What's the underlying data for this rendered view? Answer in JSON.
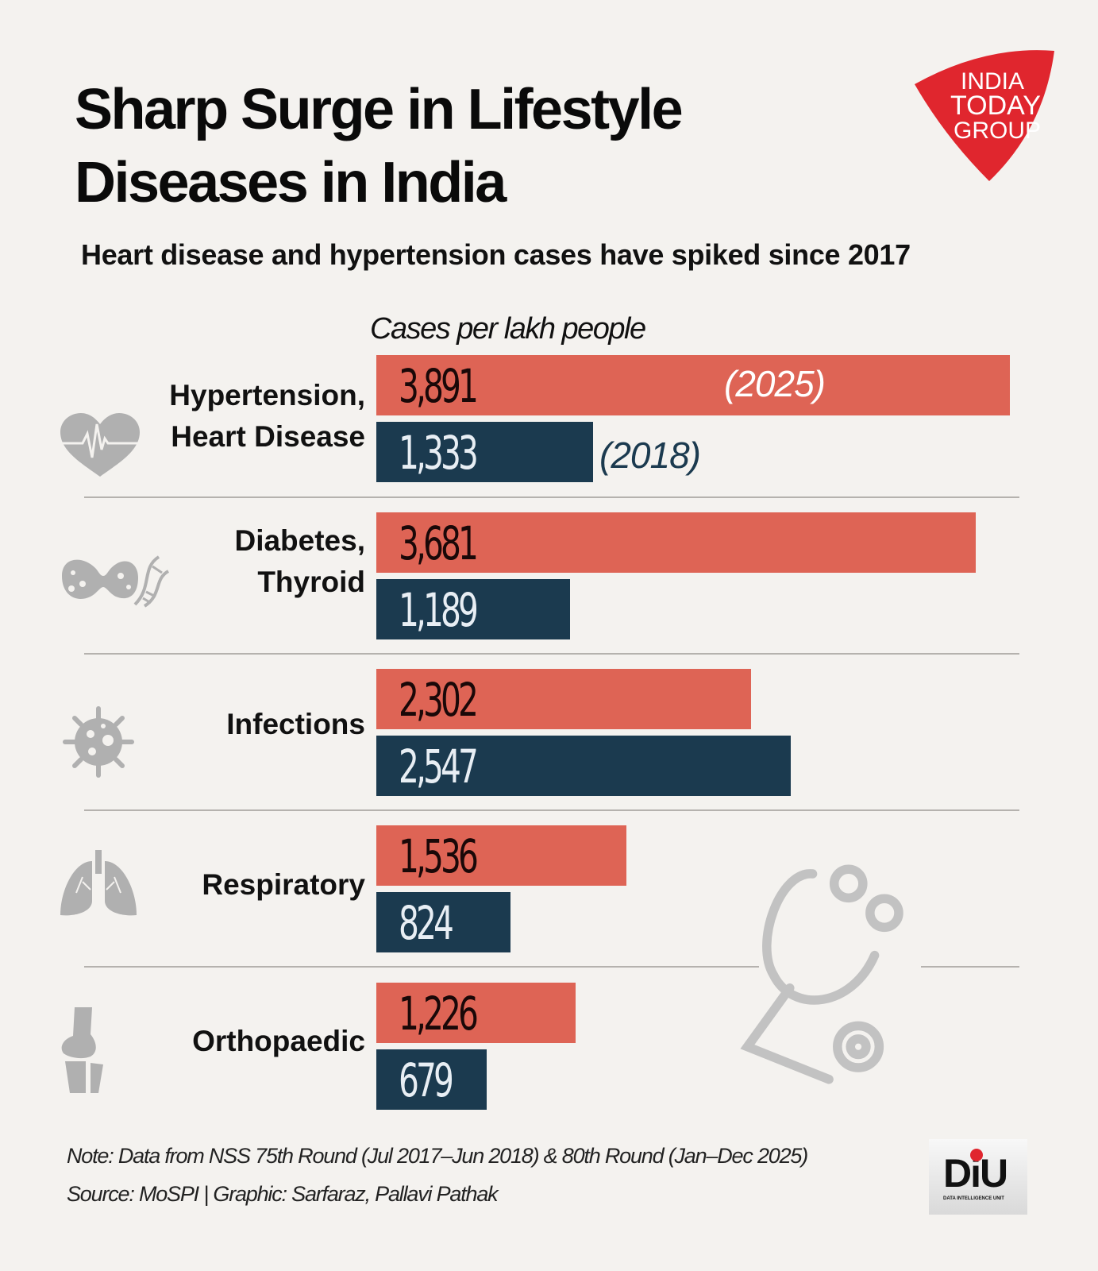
{
  "header": {
    "title_line1": "Sharp Surge in Lifestyle",
    "title_line2": "Diseases in India",
    "subtitle": "Heart disease and hypertension cases have spiked since 2017",
    "unit_label": "Cases per lakh people"
  },
  "logo": {
    "line1": "INDIA",
    "line2": "TODAY",
    "line3": "GROUP",
    "color": "#e0262e"
  },
  "diu_logo": {
    "text": "DiU",
    "subtext": "DATA INTELLIGENCE UNIT"
  },
  "colors": {
    "y2025": "#de6455",
    "y2018": "#1b3a4f"
  },
  "chart_data": {
    "type": "bar",
    "orientation": "horizontal",
    "title": "Sharp Surge in Lifestyle Diseases in India",
    "subtitle": "Heart disease and hypertension cases have spiked since 2017",
    "xlabel": "Cases per lakh people",
    "ylabel": "",
    "categories": [
      "Hypertension, Heart Disease",
      "Diabetes, Thyroid",
      "Infections",
      "Respiratory",
      "Orthopaedic"
    ],
    "series": [
      {
        "name": "2025",
        "label": "(2025)",
        "values": [
          3891,
          3681,
          2302,
          1536,
          1226
        ],
        "display": [
          "3,891",
          "3,681",
          "2,302",
          "1,536",
          "1,226"
        ]
      },
      {
        "name": "2018",
        "label": "(2018)",
        "values": [
          1333,
          1189,
          2547,
          824,
          679
        ],
        "display": [
          "1,333",
          "1,189",
          "2,547",
          "824",
          "679"
        ]
      }
    ],
    "xlim": [
      0,
      3891
    ],
    "grid": false,
    "legend": "inline labels on first category"
  },
  "categories_display": [
    {
      "line1": "Hypertension,",
      "line2": "Heart Disease",
      "icon": "heart-pulse-icon"
    },
    {
      "line1": "Diabetes,",
      "line2": "Thyroid",
      "icon": "thyroid-dna-icon"
    },
    {
      "line1": "Infections",
      "line2": "",
      "icon": "virus-icon"
    },
    {
      "line1": "Respiratory",
      "line2": "",
      "icon": "lungs-icon"
    },
    {
      "line1": "Orthopaedic",
      "line2": "",
      "icon": "knee-bone-icon"
    }
  ],
  "footer": {
    "note": "Note: Data from NSS 75th Round (Jul 2017–Jun 2018) & 80th Round (Jan–Dec 2025)",
    "source": "Source: MoSPI | Graphic:  Sarfaraz, Pallavi Pathak"
  }
}
